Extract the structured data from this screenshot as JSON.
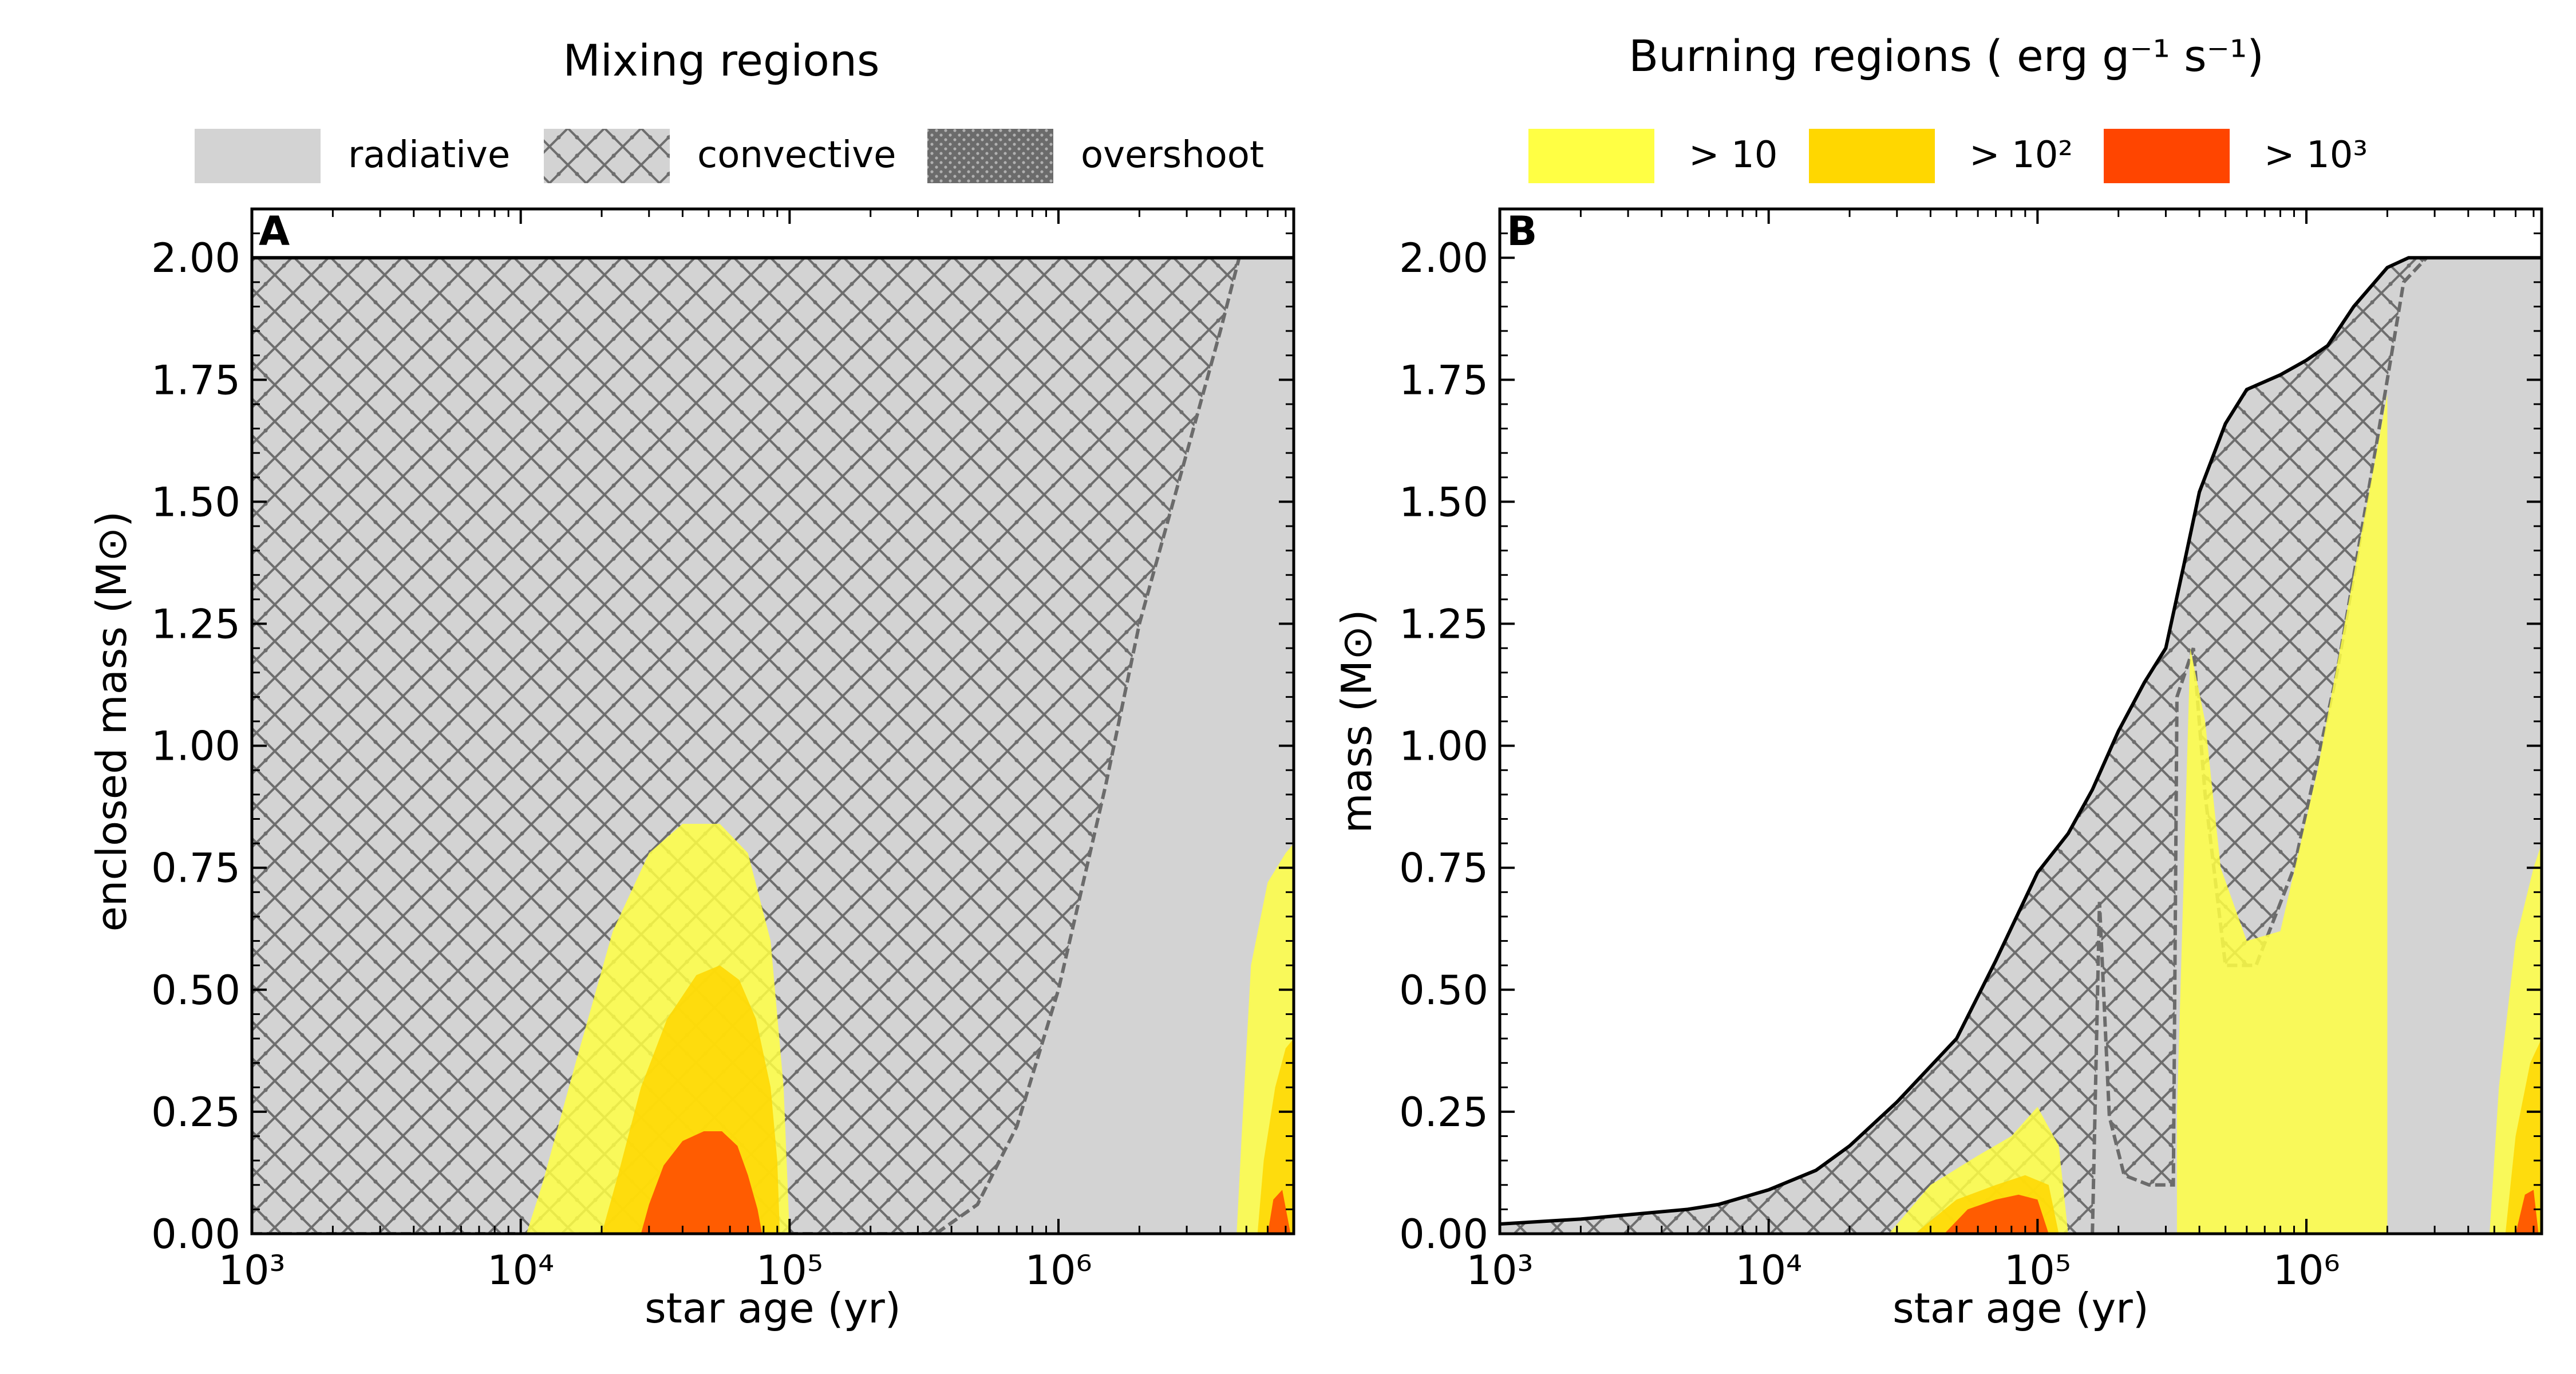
{
  "legends": {
    "mixing": {
      "title": "Mixing regions",
      "items": [
        {
          "label": "radiative",
          "style": "radiative"
        },
        {
          "label": "convective",
          "style": "convective"
        },
        {
          "label": "overshoot",
          "style": "overshoot"
        }
      ]
    },
    "burning": {
      "title": "Burning regions ( erg g⁻¹ s⁻¹)",
      "items": [
        {
          "label": "> 10",
          "color": "#ffff44"
        },
        {
          "label": "> 10²",
          "color": "#ffd700"
        },
        {
          "label": "> 10³",
          "color": "#ff4500"
        }
      ]
    }
  },
  "colors": {
    "radiative": "#d3d3d3",
    "hatch": "#6e6e6e",
    "overshoot": "#6b6b6b",
    "burn_10": "#ffff44",
    "burn_100": "#ffd700",
    "burn_1000": "#ff4500"
  },
  "chart_data": [
    {
      "type": "area",
      "panel": "A",
      "title": "",
      "xlabel": "star age (yr)",
      "ylabel": "enclosed mass  (M⊙)",
      "xscale": "log",
      "xlim": [
        1000,
        7500000
      ],
      "ylim": [
        0,
        2.1
      ],
      "x_ticks": [
        "10³",
        "10⁴",
        "10⁵",
        "10⁶"
      ],
      "x_tick_values": [
        1000,
        10000,
        100000,
        1000000
      ],
      "y_ticks": [
        "0.00",
        "0.25",
        "0.50",
        "0.75",
        "1.00",
        "1.25",
        "1.50",
        "1.75",
        "2.00"
      ],
      "y_tick_values": [
        0,
        0.25,
        0.5,
        0.75,
        1.0,
        1.25,
        1.5,
        1.75,
        2.0
      ],
      "grid": false,
      "star_mass": {
        "x": [
          1000,
          7500000
        ],
        "y": [
          2.0,
          2.0
        ]
      },
      "convective_boundary": {
        "x": [
          1000,
          350000,
          500000,
          700000,
          1000000,
          1500000,
          2000000,
          3000000,
          4000000,
          4700000
        ],
        "y": [
          0.0,
          0.0,
          0.06,
          0.22,
          0.5,
          0.92,
          1.25,
          1.6,
          1.85,
          2.0
        ]
      },
      "burning_regions": [
        {
          "level": "> 10",
          "x": [
            10500,
            12000,
            16000,
            22000,
            30000,
            40000,
            55000,
            70000,
            85000,
            95000,
            100000
          ],
          "y": [
            0.0,
            0.1,
            0.35,
            0.62,
            0.78,
            0.84,
            0.84,
            0.78,
            0.6,
            0.3,
            0.0
          ]
        },
        {
          "level": "> 10²",
          "x": [
            20000,
            23000,
            28000,
            35000,
            45000,
            55000,
            65000,
            75000,
            85000,
            90000,
            92000
          ],
          "y": [
            0.0,
            0.12,
            0.3,
            0.44,
            0.53,
            0.55,
            0.52,
            0.44,
            0.3,
            0.15,
            0.0
          ]
        },
        {
          "level": "> 10³",
          "x": [
            28000,
            30000,
            34000,
            40000,
            48000,
            56000,
            64000,
            70000,
            76000,
            79000
          ],
          "y": [
            0.0,
            0.06,
            0.14,
            0.19,
            0.21,
            0.21,
            0.18,
            0.12,
            0.05,
            0.0
          ]
        },
        {
          "level": "> 10",
          "x": [
            4600000,
            4800000,
            5200000,
            6000000,
            7000000,
            7500000
          ],
          "y": [
            0.0,
            0.2,
            0.55,
            0.72,
            0.78,
            0.8
          ]
        },
        {
          "level": "> 10²",
          "x": [
            5500000,
            5800000,
            6400000,
            7000000,
            7500000
          ],
          "y": [
            0.0,
            0.15,
            0.3,
            0.38,
            0.4
          ]
        },
        {
          "level": "> 10³",
          "x": [
            6000000,
            6300000,
            6800000,
            7300000
          ],
          "y": [
            0.0,
            0.07,
            0.09,
            0.0
          ]
        }
      ]
    },
    {
      "type": "area",
      "panel": "B",
      "title": "",
      "xlabel": "star age (yr)",
      "ylabel": "mass  (M⊙)",
      "xscale": "log",
      "xlim": [
        1000,
        7500000
      ],
      "ylim": [
        0,
        2.1
      ],
      "x_ticks": [
        "10³",
        "10⁴",
        "10⁵",
        "10⁶"
      ],
      "x_tick_values": [
        1000,
        10000,
        100000,
        1000000
      ],
      "y_ticks": [
        "0.00",
        "0.25",
        "0.50",
        "0.75",
        "1.00",
        "1.25",
        "1.50",
        "1.75",
        "2.00"
      ],
      "y_tick_values": [
        0,
        0.25,
        0.5,
        0.75,
        1.0,
        1.25,
        1.5,
        1.75,
        2.0
      ],
      "grid": false,
      "stellar_mass": {
        "x": [
          1000,
          2000,
          5000,
          6500,
          10000,
          15000,
          20000,
          30000,
          50000,
          70000,
          100000,
          130000,
          160000,
          200000,
          250000,
          300000,
          350000,
          400000,
          500000,
          600000,
          800000,
          1000000,
          1200000,
          1500000,
          2000000,
          2400000,
          3000000,
          5000000,
          7500000
        ],
        "y": [
          0.02,
          0.03,
          0.05,
          0.06,
          0.09,
          0.13,
          0.18,
          0.27,
          0.4,
          0.56,
          0.74,
          0.82,
          0.91,
          1.03,
          1.13,
          1.2,
          1.37,
          1.52,
          1.66,
          1.73,
          1.76,
          1.79,
          1.82,
          1.9,
          1.98,
          2.0,
          2.0,
          2.0,
          2.0
        ]
      },
      "convective_boundary": {
        "x": [
          160000,
          170000,
          185000,
          210000,
          260000,
          320000,
          330000,
          380000,
          420000,
          500000,
          650000,
          900000,
          1300000,
          1800000,
          2300000,
          2800000
        ],
        "y": [
          0.0,
          0.68,
          0.24,
          0.12,
          0.1,
          0.1,
          1.1,
          1.2,
          0.9,
          0.55,
          0.55,
          0.75,
          1.15,
          1.6,
          1.95,
          2.0
        ]
      },
      "burning_regions": [
        {
          "level": "> 10",
          "x": [
            28000,
            40000,
            60000,
            80000,
            100000,
            120000,
            130000
          ],
          "y": [
            0.0,
            0.1,
            0.16,
            0.2,
            0.26,
            0.18,
            0.0
          ]
        },
        {
          "level": "> 10²",
          "x": [
            35000,
            50000,
            70000,
            90000,
            110000,
            120000
          ],
          "y": [
            0.0,
            0.07,
            0.1,
            0.12,
            0.1,
            0.0
          ]
        },
        {
          "level": "> 10³",
          "x": [
            45000,
            55000,
            70000,
            85000,
            100000,
            110000
          ],
          "y": [
            0.0,
            0.05,
            0.07,
            0.08,
            0.07,
            0.0
          ]
        },
        {
          "level": "> 10",
          "x": [
            330000,
            370000,
            420000,
            480000,
            600000,
            800000,
            1100000,
            1500000,
            2000000
          ],
          "y": [
            0.25,
            1.2,
            1.05,
            0.75,
            0.6,
            0.62,
            0.95,
            1.35,
            1.72
          ]
        },
        {
          "level": "> 10",
          "x": [
            4800000,
            5200000,
            6000000,
            7000000,
            7500000
          ],
          "y": [
            0.0,
            0.3,
            0.6,
            0.75,
            0.8
          ]
        },
        {
          "level": "> 10²",
          "x": [
            5500000,
            6000000,
            6800000,
            7500000
          ],
          "y": [
            0.0,
            0.2,
            0.35,
            0.4
          ]
        },
        {
          "level": "> 10³",
          "x": [
            6000000,
            6500000,
            7000000,
            7300000
          ],
          "y": [
            0.0,
            0.08,
            0.09,
            0.0
          ]
        }
      ]
    }
  ]
}
